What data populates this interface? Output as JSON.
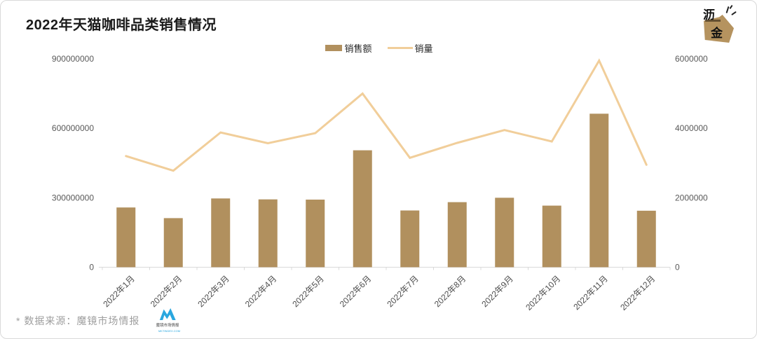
{
  "card": {
    "title": "2022年天猫咖啡品类销售情况"
  },
  "brand_logo": {
    "char_top": "沥",
    "char_bottom": "金",
    "color": "#B5935F"
  },
  "chart_data": {
    "type": "bar",
    "combo": "bar+line, dual y-axis",
    "title": "2022年天猫咖啡品类销售情况",
    "categories": [
      "2022年1月",
      "2022年2月",
      "2022年3月",
      "2022年4月",
      "2022年5月",
      "2022年6月",
      "2022年7月",
      "2022年8月",
      "2022年9月",
      "2022年10月",
      "2022年11月",
      "2022年12月"
    ],
    "series": [
      {
        "name": "销售额",
        "type": "bar",
        "axis": "left",
        "color": "#B1905E",
        "values": [
          258000000,
          212000000,
          297000000,
          293000000,
          292000000,
          505000000,
          245000000,
          281000000,
          300000000,
          266000000,
          663000000,
          244000000
        ]
      },
      {
        "name": "销量",
        "type": "line",
        "axis": "right",
        "color": "#F1CE9A",
        "values": [
          3200000,
          2780000,
          3880000,
          3570000,
          3860000,
          5000000,
          3150000,
          3580000,
          3950000,
          3620000,
          5950000,
          2950000
        ]
      }
    ],
    "left_axis": {
      "min": 0,
      "max": 900000000,
      "ticks": [
        0,
        300000000,
        600000000,
        900000000
      ]
    },
    "right_axis": {
      "min": 0,
      "max": 6000000,
      "ticks": [
        0,
        2000000,
        4000000,
        6000000
      ]
    },
    "xlabel": "",
    "ylabel_left": "",
    "ylabel_right": "",
    "grid": false,
    "legend_position": "top-center",
    "x_label_rotation": -45
  },
  "footer": {
    "source_note": "* 数据来源：魔镜市场情报",
    "logo_letter": "M",
    "logo_color": "#2AA7DF",
    "logo_caption": "魔镜市场情报",
    "logo_subcaption": "MKTINDEX.COM"
  }
}
